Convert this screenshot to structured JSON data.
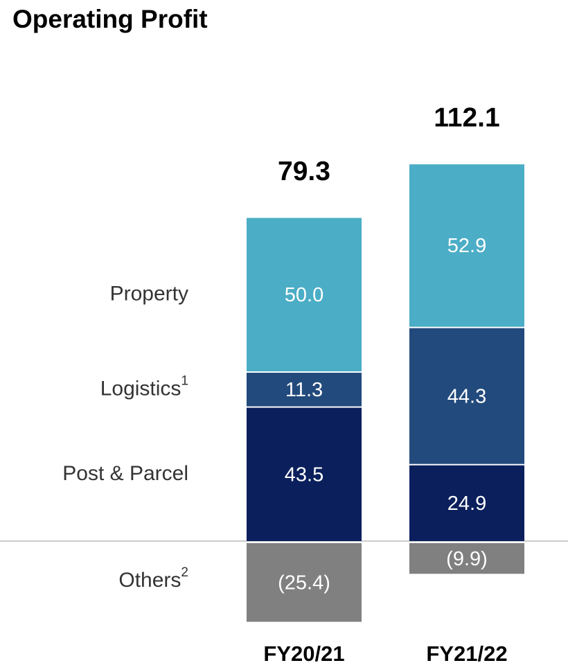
{
  "chart_data": {
    "type": "stacked_bar",
    "title": "Operating Profit",
    "categories": [
      "FY20/21",
      "FY21/22"
    ],
    "totals": [
      79.3,
      112.1
    ],
    "series": [
      {
        "name": "Post & Parcel",
        "color": "#0a1f5c",
        "values": [
          43.5,
          24.9
        ],
        "value_labels": [
          "43.5",
          "24.9"
        ]
      },
      {
        "name": "Logistics",
        "footnote": "1",
        "color": "#224a7c",
        "values": [
          11.3,
          44.3
        ],
        "value_labels": [
          "11.3",
          "44.3"
        ]
      },
      {
        "name": "Property",
        "color": "#4badc6",
        "values": [
          50.0,
          52.9
        ],
        "value_labels": [
          "50.0",
          "52.9"
        ]
      },
      {
        "name": "Others",
        "footnote": "2",
        "color": "#808080",
        "values": [
          -25.4,
          -9.9
        ],
        "value_labels": [
          "(25.4)",
          "(9.9)"
        ]
      }
    ]
  }
}
